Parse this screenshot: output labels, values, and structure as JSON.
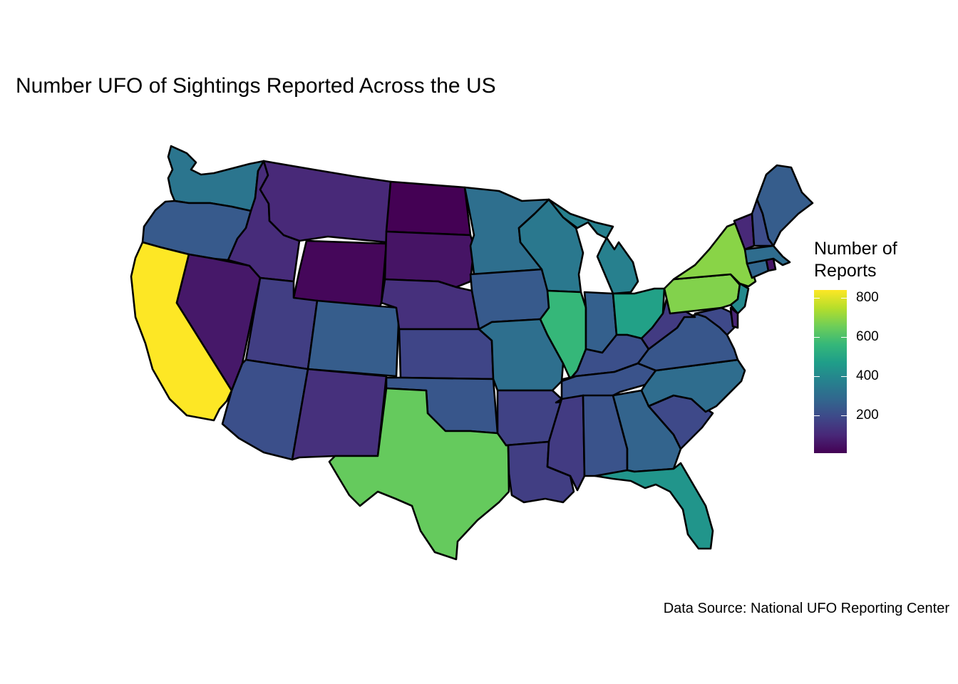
{
  "title": "Number UFO of Sightings Reported Across the US",
  "caption": "Data Source: National UFO Reporting Center",
  "legend": {
    "title_line1": "Number of",
    "title_line2": "Reports",
    "ticks": [
      {
        "value": 200,
        "label": "200"
      },
      {
        "value": 400,
        "label": "400"
      },
      {
        "value": 600,
        "label": "600"
      },
      {
        "value": 800,
        "label": "800"
      }
    ],
    "min": 5,
    "max": 840,
    "palette": "viridis",
    "palette_stops": [
      "#440154",
      "#482878",
      "#3e4989",
      "#31688e",
      "#26828e",
      "#1f9e89",
      "#35b779",
      "#6ece58",
      "#b5de2b",
      "#fde725"
    ]
  },
  "chart_data": {
    "type": "choropleth",
    "region": "Contiguous United States",
    "value_label": "Number of Reports",
    "states": [
      {
        "name": "California",
        "value": 840
      },
      {
        "name": "New York",
        "value": 690
      },
      {
        "name": "Pennsylvania",
        "value": 680
      },
      {
        "name": "Texas",
        "value": 640
      },
      {
        "name": "Illinois",
        "value": 560
      },
      {
        "name": "Ohio",
        "value": 480
      },
      {
        "name": "Florida",
        "value": 440
      },
      {
        "name": "New Jersey",
        "value": 400
      },
      {
        "name": "Michigan",
        "value": 370
      },
      {
        "name": "Wisconsin",
        "value": 340
      },
      {
        "name": "Washington",
        "value": 330
      },
      {
        "name": "Minnesota",
        "value": 310
      },
      {
        "name": "Missouri",
        "value": 310
      },
      {
        "name": "North Carolina",
        "value": 300
      },
      {
        "name": "Massachusetts",
        "value": 300
      },
      {
        "name": "Connecticut",
        "value": 280
      },
      {
        "name": "Georgia",
        "value": 270
      },
      {
        "name": "Indiana",
        "value": 260
      },
      {
        "name": "Maine",
        "value": 250
      },
      {
        "name": "Colorado",
        "value": 250
      },
      {
        "name": "Oregon",
        "value": 240
      },
      {
        "name": "Iowa",
        "value": 240
      },
      {
        "name": "Oklahoma",
        "value": 230
      },
      {
        "name": "Virginia",
        "value": 230
      },
      {
        "name": "Alabama",
        "value": 220
      },
      {
        "name": "Tennessee",
        "value": 220
      },
      {
        "name": "Arizona",
        "value": 210
      },
      {
        "name": "Kentucky",
        "value": 210
      },
      {
        "name": "New Hampshire",
        "value": 200
      },
      {
        "name": "Maryland",
        "value": 190
      },
      {
        "name": "South Carolina",
        "value": 190
      },
      {
        "name": "Kansas",
        "value": 180
      },
      {
        "name": "Arkansas",
        "value": 170
      },
      {
        "name": "Utah",
        "value": 160
      },
      {
        "name": "Louisiana",
        "value": 160
      },
      {
        "name": "West Virginia",
        "value": 150
      },
      {
        "name": "Mississippi",
        "value": 150
      },
      {
        "name": "Nebraska",
        "value": 120
      },
      {
        "name": "New Mexico",
        "value": 120
      },
      {
        "name": "Idaho",
        "value": 110
      },
      {
        "name": "Montana",
        "value": 100
      },
      {
        "name": "Vermont",
        "value": 100
      },
      {
        "name": "Delaware",
        "value": 90
      },
      {
        "name": "Nevada",
        "value": 60
      },
      {
        "name": "South Dakota",
        "value": 50
      },
      {
        "name": "Rhode Island",
        "value": 50
      },
      {
        "name": "Wyoming",
        "value": 20
      },
      {
        "name": "North Dakota",
        "value": 5
      }
    ]
  }
}
